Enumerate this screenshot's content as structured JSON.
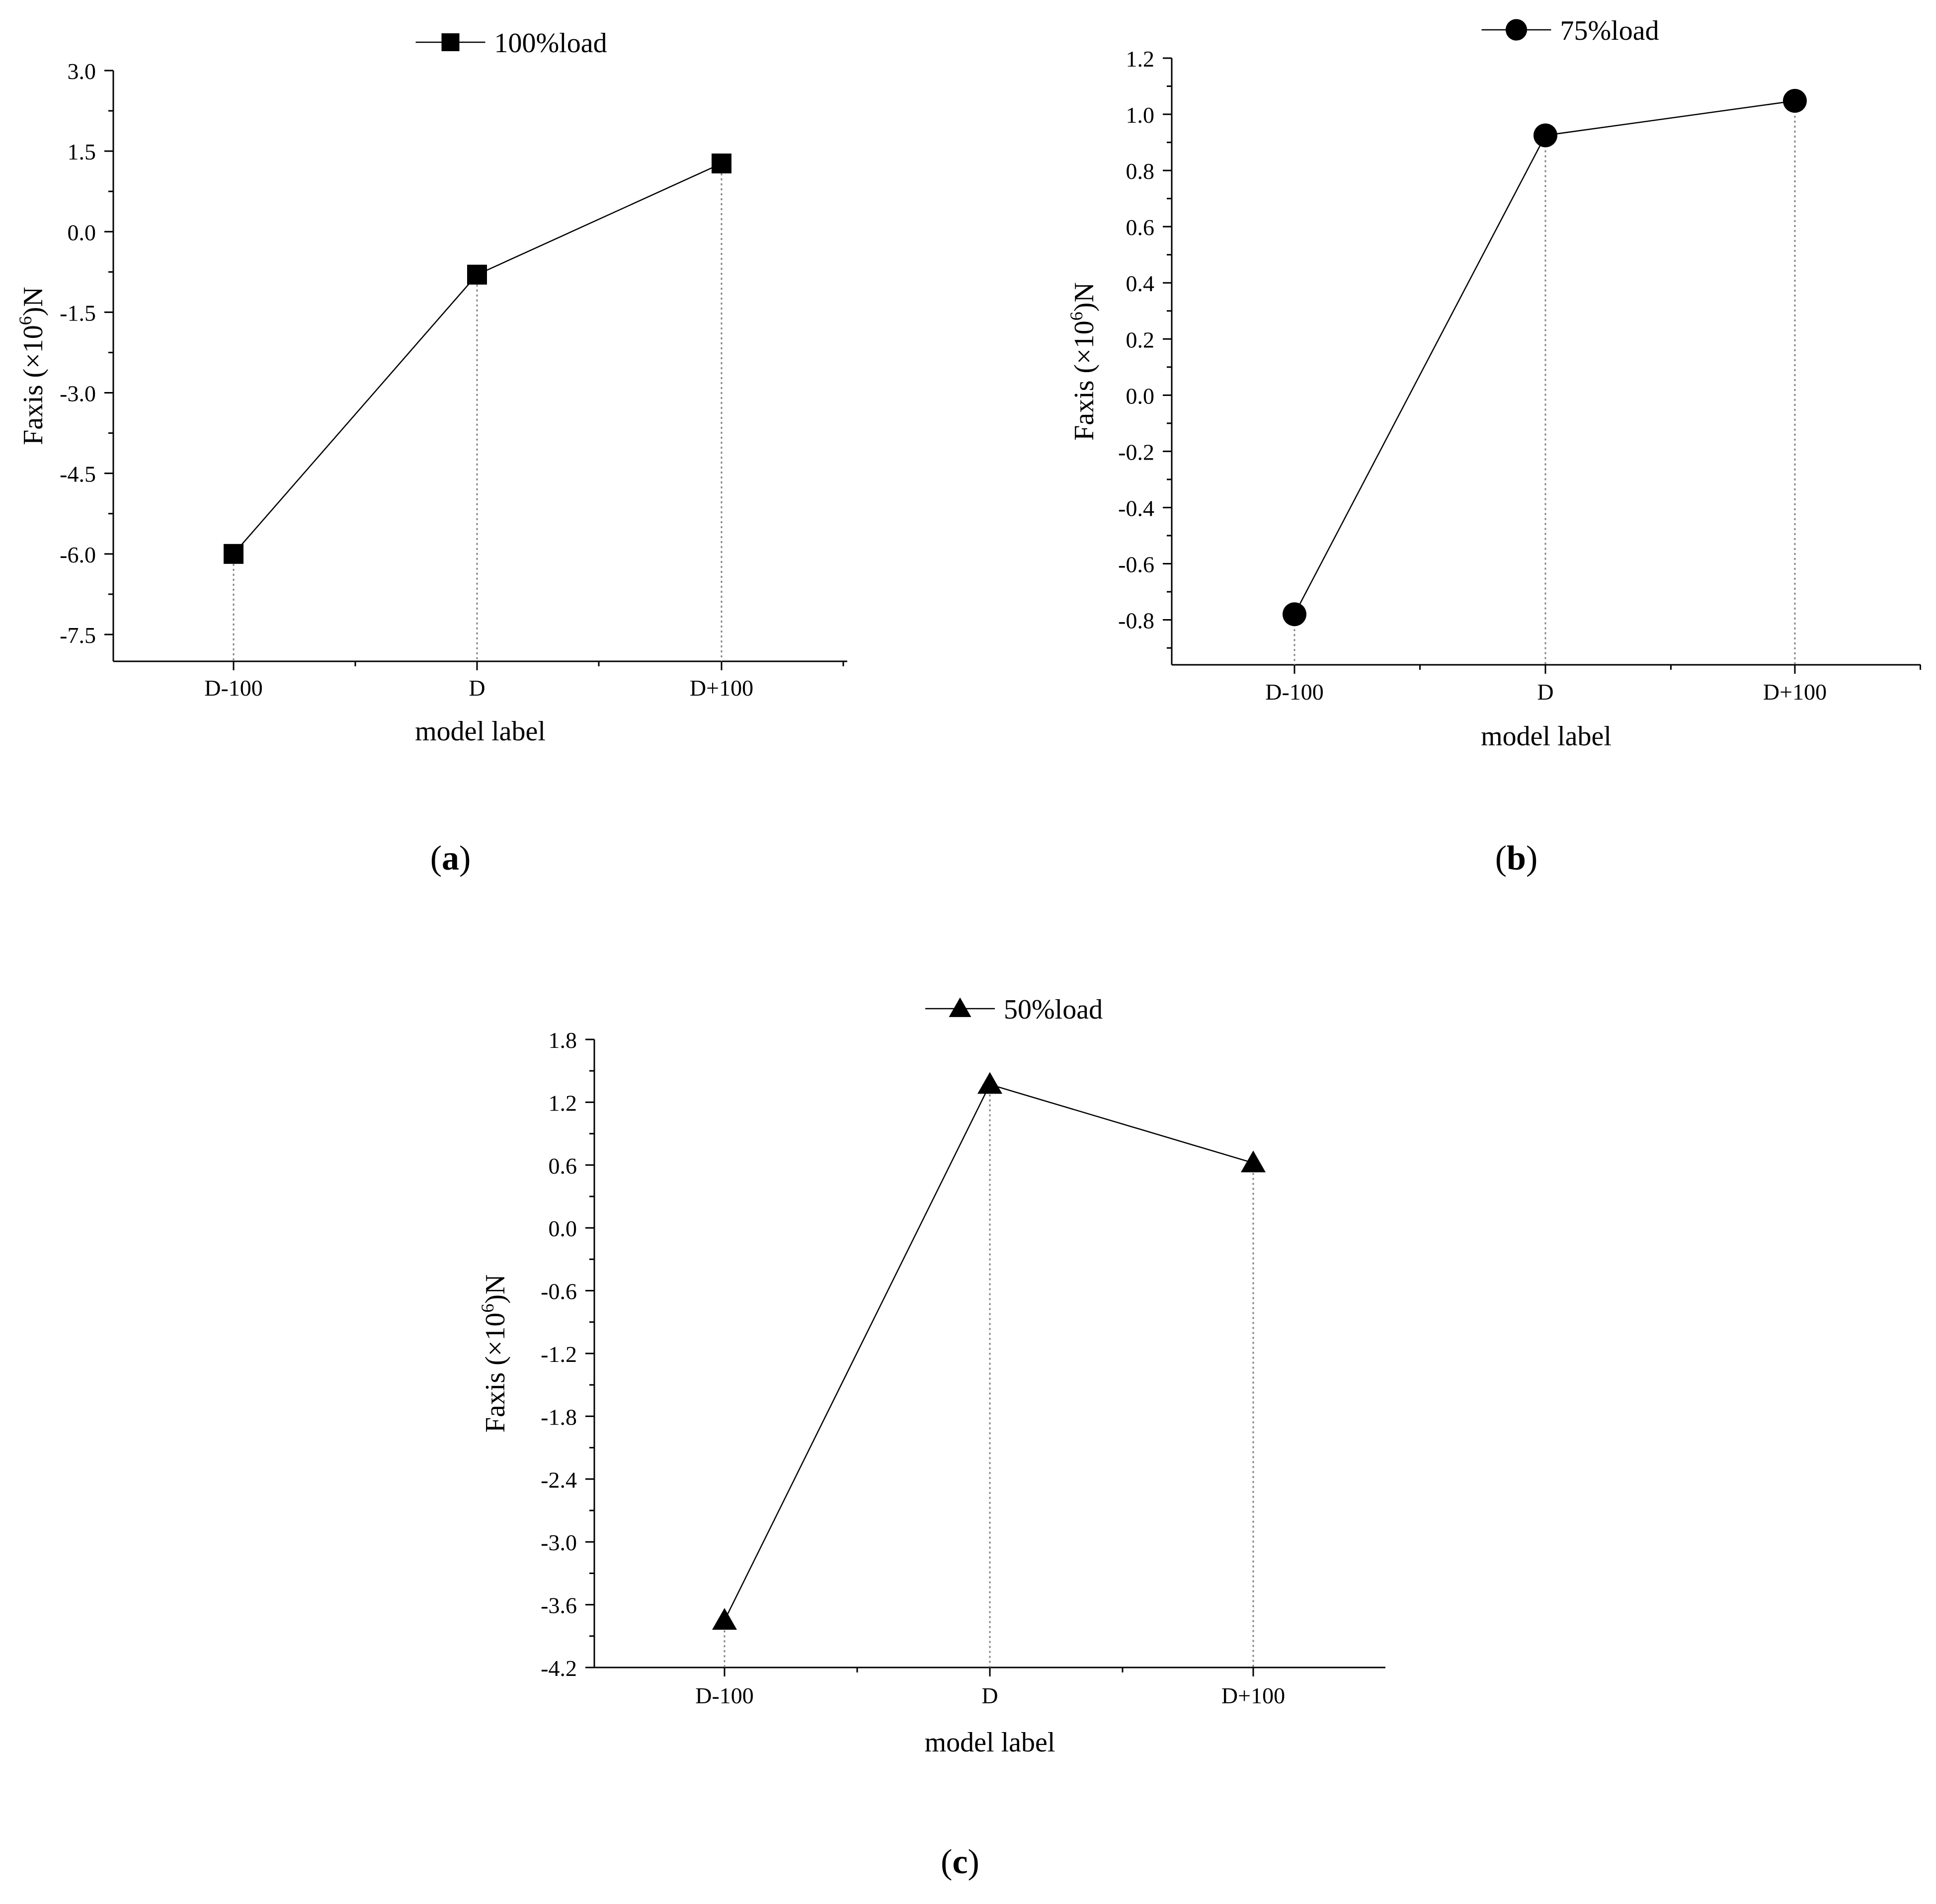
{
  "chart_data": [
    {
      "type": "line",
      "panel_label": "a",
      "categories": [
        "D-100",
        "D",
        "D+100"
      ],
      "series": [
        {
          "name": "100%load",
          "values": [
            -6.0,
            -0.8,
            1.27
          ]
        }
      ],
      "marker": "square",
      "xlabel": "model label",
      "ylabel": "Faxis (×10",
      "ylabel_sup": "6",
      "ylabel_suffix": ")N",
      "ylim": [
        -8.0,
        3.0
      ],
      "yticks": [
        3.0,
        1.5,
        0.0,
        -1.5,
        -3.0,
        -4.5,
        -6.0,
        -7.5
      ],
      "ytick_labels": [
        "3.0",
        "1.5",
        "0.0",
        "-1.5",
        "-3.0",
        "-4.5",
        "-6.0",
        "-7.5"
      ],
      "drop_lines": "dotted",
      "grid": false,
      "legend": "top"
    },
    {
      "type": "line",
      "panel_label": "b",
      "categories": [
        "D-100",
        "D",
        "D+100"
      ],
      "series": [
        {
          "name": "75%load",
          "values": [
            -0.78,
            0.925,
            1.048
          ]
        }
      ],
      "marker": "circle",
      "xlabel": "model label",
      "ylabel": "Faxis (×10",
      "ylabel_sup": "6",
      "ylabel_suffix": ")N",
      "ylim": [
        -0.96,
        1.2
      ],
      "yticks": [
        1.2,
        1.0,
        0.8,
        0.6,
        0.4,
        0.2,
        0.0,
        -0.2,
        -0.4,
        -0.6,
        -0.8
      ],
      "ytick_labels": [
        "1.2",
        "1.0",
        "0.8",
        "0.6",
        "0.4",
        "0.2",
        "0.0",
        "-0.2",
        "-0.4",
        "-0.6",
        "-0.8"
      ],
      "drop_lines": "dotted",
      "grid": false,
      "legend": "top"
    },
    {
      "type": "line",
      "panel_label": "c",
      "categories": [
        "D-100",
        "D",
        "D+100"
      ],
      "series": [
        {
          "name": "50%load",
          "values": [
            -3.75,
            1.37,
            0.62
          ]
        }
      ],
      "marker": "triangle",
      "xlabel": "model label",
      "ylabel": "Faxis (×10",
      "ylabel_sup": "6",
      "ylabel_suffix": ")N",
      "ylim": [
        -4.2,
        1.8
      ],
      "yticks": [
        1.8,
        1.2,
        0.6,
        0.0,
        -0.6,
        -1.2,
        -1.8,
        -2.4,
        -3.0,
        -3.6,
        -4.2
      ],
      "ytick_labels": [
        "1.8",
        "1.2",
        "0.6",
        "0.0",
        "-0.6",
        "-1.2",
        "-1.8",
        "-2.4",
        "-3.0",
        "-3.6",
        "-4.2"
      ],
      "drop_lines": "dotted",
      "grid": false,
      "legend": "top"
    }
  ],
  "colors": {
    "line": "#000000",
    "drop_line": "#808080",
    "axis": "#000000"
  }
}
